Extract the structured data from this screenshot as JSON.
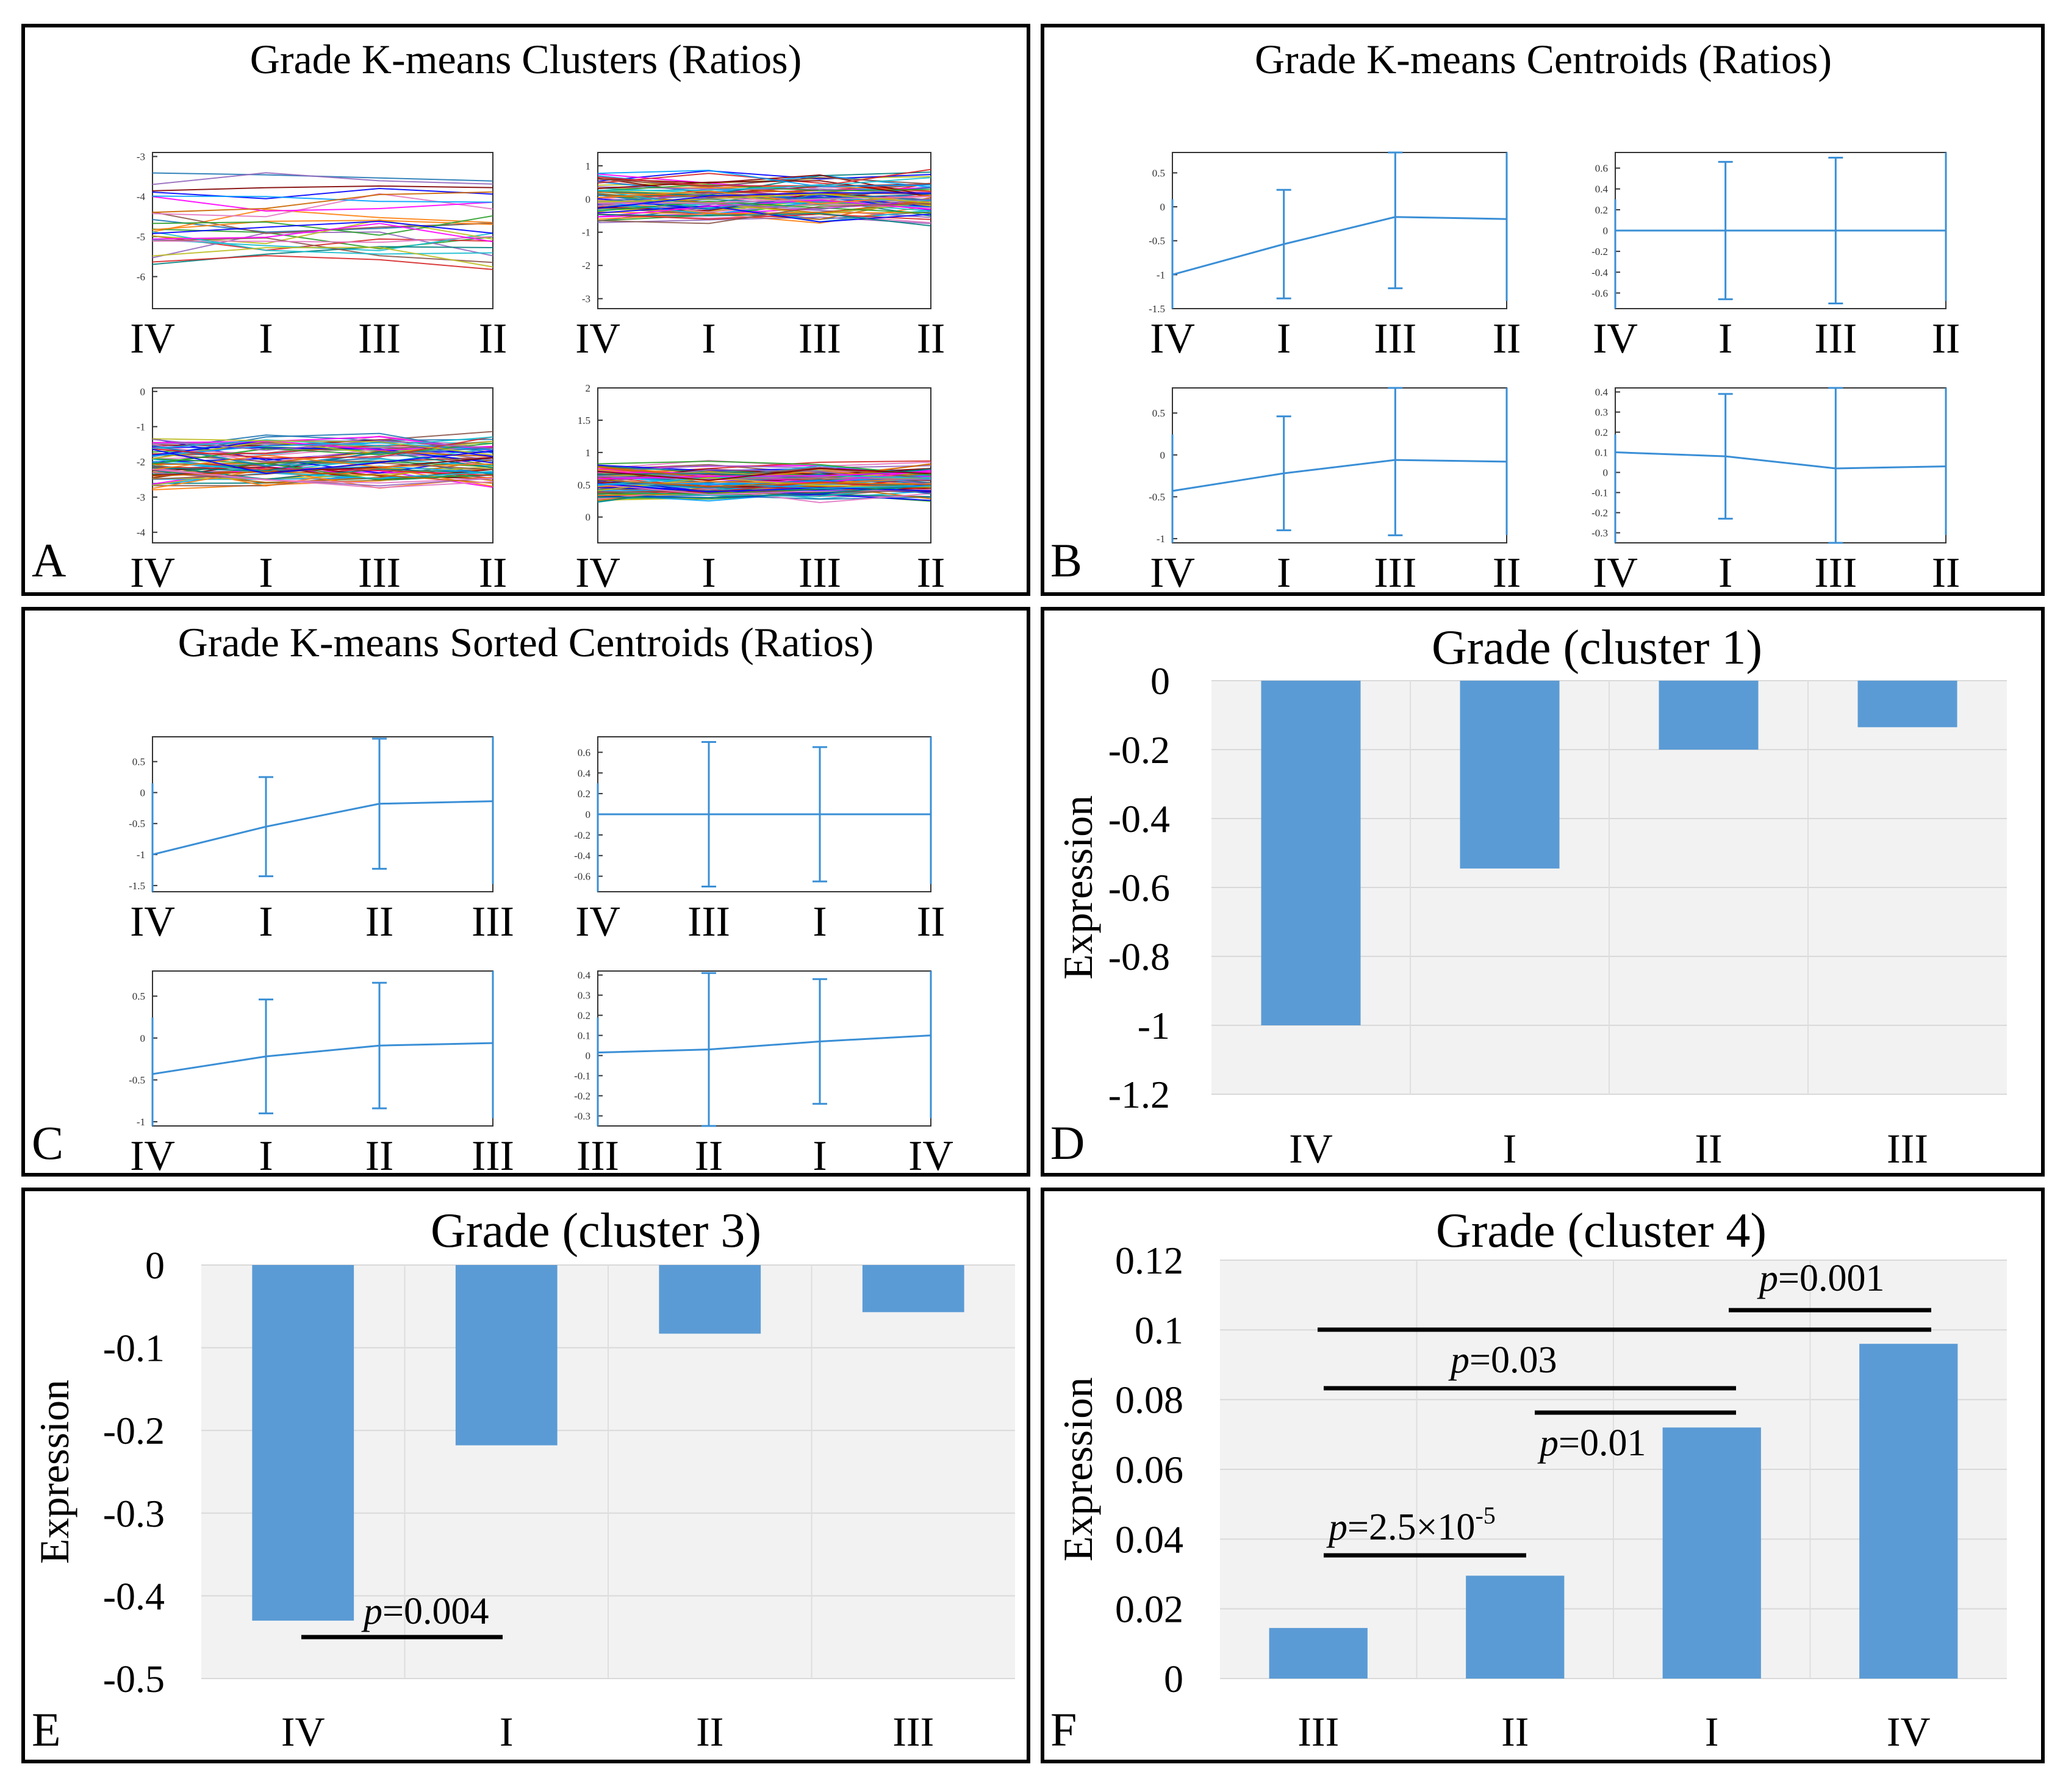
{
  "panels": {
    "A": {
      "letter": "A",
      "title": "Grade K-means Clusters (Ratios)",
      "subplots": [
        {
          "x_labels": [
            "IV",
            "I",
            "III",
            "II"
          ],
          "ylim": [
            -6.8,
            -2.9
          ],
          "yticks": [
            "-3",
            "-4",
            "-5",
            "-6"
          ]
        },
        {
          "x_labels": [
            "IV",
            "I",
            "III",
            "II"
          ],
          "ylim": [
            -3.3,
            1.4
          ],
          "yticks": [
            "1",
            "0",
            "-1",
            "-2",
            "-3"
          ]
        },
        {
          "x_labels": [
            "IV",
            "I",
            "III",
            "II"
          ],
          "ylim": [
            -4.3,
            0.1
          ],
          "yticks": [
            "0",
            "-1",
            "-2",
            "-3",
            "-4"
          ]
        },
        {
          "x_labels": [
            "IV",
            "I",
            "III",
            "II"
          ],
          "ylim": [
            -0.4,
            2.0
          ],
          "yticks": [
            "2",
            "1.5",
            "1",
            "0.5",
            "0"
          ]
        }
      ]
    },
    "B": {
      "letter": "B",
      "title": "Grade K-means Centroids (Ratios)",
      "subplots": [
        {
          "x_labels": [
            "IV",
            "I",
            "III",
            "II"
          ],
          "ylim": [
            -1.5,
            0.8
          ],
          "yticks": [
            "0.5",
            "0",
            "-0.5",
            "-1",
            "-1.5"
          ],
          "centroid": [
            -1.0,
            -0.55,
            -0.15,
            -0.18
          ],
          "err": [
            null,
            0.8,
            1.05,
            null
          ]
        },
        {
          "x_labels": [
            "IV",
            "I",
            "III",
            "II"
          ],
          "ylim": [
            -0.75,
            0.75
          ],
          "yticks": [
            "0.6",
            "0.4",
            "0.2",
            "0",
            "-0.2",
            "-0.4",
            "-0.6"
          ],
          "centroid": [
            0.0,
            0.0,
            0.0,
            0.0
          ],
          "err": [
            null,
            0.66,
            0.7,
            null
          ]
        },
        {
          "x_labels": [
            "IV",
            "I",
            "III",
            "II"
          ],
          "ylim": [
            -1.05,
            0.8
          ],
          "yticks": [
            "0.5",
            "0",
            "-0.5",
            "-1"
          ],
          "centroid": [
            -0.43,
            -0.22,
            -0.06,
            -0.08
          ],
          "err": [
            null,
            0.68,
            0.9,
            null
          ]
        },
        {
          "x_labels": [
            "IV",
            "I",
            "III",
            "II"
          ],
          "ylim": [
            -0.35,
            0.42
          ],
          "yticks": [
            "0.4",
            "0.3",
            "0.2",
            "0.1",
            "0",
            "-0.1",
            "-0.2",
            "-0.3"
          ],
          "centroid": [
            0.1,
            0.08,
            0.02,
            0.03
          ],
          "err": [
            null,
            0.31,
            0.5,
            null
          ]
        }
      ]
    },
    "C": {
      "letter": "C",
      "title": "Grade K-means Sorted Centroids (Ratios)",
      "subplots": [
        {
          "x_labels": [
            "IV",
            "I",
            "II",
            "III"
          ],
          "ylim": [
            -1.6,
            0.9
          ],
          "yticks": [
            "0.5",
            "0",
            "-0.5",
            "-1",
            "-1.5"
          ],
          "centroid": [
            -1.0,
            -0.55,
            -0.18,
            -0.14
          ],
          "err": [
            null,
            0.8,
            1.05,
            null
          ]
        },
        {
          "x_labels": [
            "IV",
            "III",
            "I",
            "II"
          ],
          "ylim": [
            -0.75,
            0.75
          ],
          "yticks": [
            "0.6",
            "0.4",
            "0.2",
            "0",
            "-0.2",
            "-0.4",
            "-0.6"
          ],
          "centroid": [
            0.0,
            0.0,
            0.0,
            0.0
          ],
          "err": [
            null,
            0.7,
            0.65,
            null
          ]
        },
        {
          "x_labels": [
            "IV",
            "I",
            "II",
            "III"
          ],
          "ylim": [
            -1.05,
            0.8
          ],
          "yticks": [
            "0.5",
            "0",
            "-0.5",
            "-1"
          ],
          "centroid": [
            -0.43,
            -0.22,
            -0.09,
            -0.06
          ],
          "err": [
            null,
            0.68,
            0.75,
            null
          ]
        },
        {
          "x_labels": [
            "III",
            "II",
            "I",
            "IV"
          ],
          "ylim": [
            -0.35,
            0.42
          ],
          "yticks": [
            "0.4",
            "0.3",
            "0.2",
            "0.1",
            "0",
            "-0.1",
            "-0.2",
            "-0.3"
          ],
          "centroid": [
            0.015,
            0.03,
            0.07,
            0.1
          ],
          "err": [
            null,
            0.38,
            0.31,
            null
          ]
        }
      ]
    },
    "D": {
      "letter": "D",
      "title": "Grade (cluster 1)",
      "ylabel": "Expression"
    },
    "E": {
      "letter": "E",
      "title": "Grade (cluster 3)",
      "ylabel": "Expression",
      "annotations": [
        {
          "p_label": "p",
          "p_value": "=0.004"
        }
      ]
    },
    "F": {
      "letter": "F",
      "title": "Grade (cluster 4)",
      "ylabel": "Expression",
      "annotations": [
        {
          "p_label": "p",
          "p_value": "=0.001"
        },
        {
          "p_label": "p",
          "p_value": "=0.03"
        },
        {
          "p_label": "p",
          "p_value": "=0.01"
        },
        {
          "p_label": "p",
          "p_value": "=2.5×10",
          "p_exp": "-5"
        }
      ]
    }
  },
  "colors": {
    "bar": "#5b9bd5",
    "line": "#3a8fd6",
    "border": "#000000",
    "plotbg": "#f2f2f2"
  },
  "chart_data": [
    {
      "panel": "D",
      "type": "bar",
      "title": "Grade (cluster 1)",
      "ylabel": "Expression",
      "categories": [
        "IV",
        "I",
        "II",
        "III"
      ],
      "values": [
        -1.0,
        -0.545,
        -0.2,
        -0.135
      ],
      "ylim": [
        -1.2,
        0
      ],
      "yticks": [
        "0",
        "-0.2",
        "-0.4",
        "-0.6",
        "-0.8",
        "-1",
        "-1.2"
      ],
      "grid": true
    },
    {
      "panel": "E",
      "type": "bar",
      "title": "Grade (cluster 3)",
      "ylabel": "Expression",
      "categories": [
        "IV",
        "I",
        "II",
        "III"
      ],
      "values": [
        -0.43,
        -0.218,
        -0.083,
        -0.057
      ],
      "ylim": [
        -0.5,
        0
      ],
      "yticks": [
        "0",
        "-0.1",
        "-0.2",
        "-0.3",
        "-0.4",
        "-0.5"
      ],
      "grid": true
    },
    {
      "panel": "F",
      "type": "bar",
      "title": "Grade (cluster 4)",
      "ylabel": "Expression",
      "categories": [
        "III",
        "II",
        "I",
        "IV"
      ],
      "values": [
        0.0145,
        0.0295,
        0.072,
        0.096
      ],
      "ylim": [
        0,
        0.12
      ],
      "yticks": [
        "0.12",
        "0.1",
        "0.08",
        "0.06",
        "0.04",
        "0.02",
        "0"
      ],
      "grid": true
    }
  ]
}
